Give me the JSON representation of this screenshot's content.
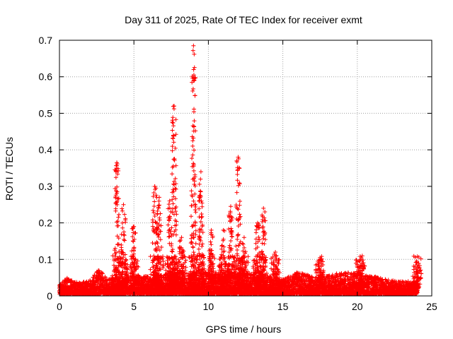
{
  "chart_data": {
    "type": "scatter",
    "title": "Day 311 of 2025, Rate Of TEC Index for receiver exmt",
    "xlabel": "GPS time / hours",
    "ylabel": "ROTI / TECUs",
    "xlim": [
      0,
      25
    ],
    "ylim": [
      0,
      0.7
    ],
    "xticks": [
      0,
      5,
      10,
      15,
      20,
      25
    ],
    "yticks": [
      0,
      0.1,
      0.2,
      0.3,
      0.4,
      0.5,
      0.6,
      0.7
    ],
    "xtick_labels": [
      "0",
      "5",
      "10",
      "15",
      "20",
      "25"
    ],
    "ytick_labels": [
      "0",
      "0.1",
      "0.2",
      "0.3",
      "0.4",
      "0.5",
      "0.6",
      "0.7"
    ],
    "grid": true,
    "marker": "+",
    "marker_color": "#ff0000",
    "baseline_envelope": [
      [
        0.0,
        0.025
      ],
      [
        0.5,
        0.045
      ],
      [
        1.0,
        0.035
      ],
      [
        2.0,
        0.035
      ],
      [
        2.7,
        0.07
      ],
      [
        3.2,
        0.04
      ],
      [
        4.0,
        0.05
      ],
      [
        5.0,
        0.05
      ],
      [
        6.0,
        0.05
      ],
      [
        8.0,
        0.06
      ],
      [
        10.0,
        0.06
      ],
      [
        12.0,
        0.06
      ],
      [
        14.0,
        0.05
      ],
      [
        15.0,
        0.04
      ],
      [
        16.0,
        0.06
      ],
      [
        17.0,
        0.05
      ],
      [
        18.0,
        0.05
      ],
      [
        19.0,
        0.06
      ],
      [
        20.0,
        0.06
      ],
      [
        21.0,
        0.05
      ],
      [
        22.0,
        0.04
      ],
      [
        23.0,
        0.035
      ],
      [
        24.0,
        0.035
      ]
    ],
    "spikes": [
      {
        "x": 3.85,
        "peak": 0.365
      },
      {
        "x": 4.3,
        "peak": 0.25
      },
      {
        "x": 5.0,
        "peak": 0.19
      },
      {
        "x": 6.4,
        "peak": 0.3
      },
      {
        "x": 6.7,
        "peak": 0.27
      },
      {
        "x": 7.4,
        "peak": 0.26
      },
      {
        "x": 7.7,
        "peak": 0.52
      },
      {
        "x": 8.2,
        "peak": 0.16
      },
      {
        "x": 9.0,
        "peak": 0.685
      },
      {
        "x": 9.5,
        "peak": 0.34
      },
      {
        "x": 10.2,
        "peak": 0.18
      },
      {
        "x": 11.0,
        "peak": 0.18
      },
      {
        "x": 11.5,
        "peak": 0.245
      },
      {
        "x": 12.0,
        "peak": 0.38
      },
      {
        "x": 12.4,
        "peak": 0.16
      },
      {
        "x": 13.3,
        "peak": 0.2
      },
      {
        "x": 13.7,
        "peak": 0.24
      },
      {
        "x": 14.5,
        "peak": 0.12
      },
      {
        "x": 17.5,
        "peak": 0.105
      },
      {
        "x": 20.2,
        "peak": 0.1
      },
      {
        "x": 24.0,
        "peak": 0.085
      }
    ]
  }
}
